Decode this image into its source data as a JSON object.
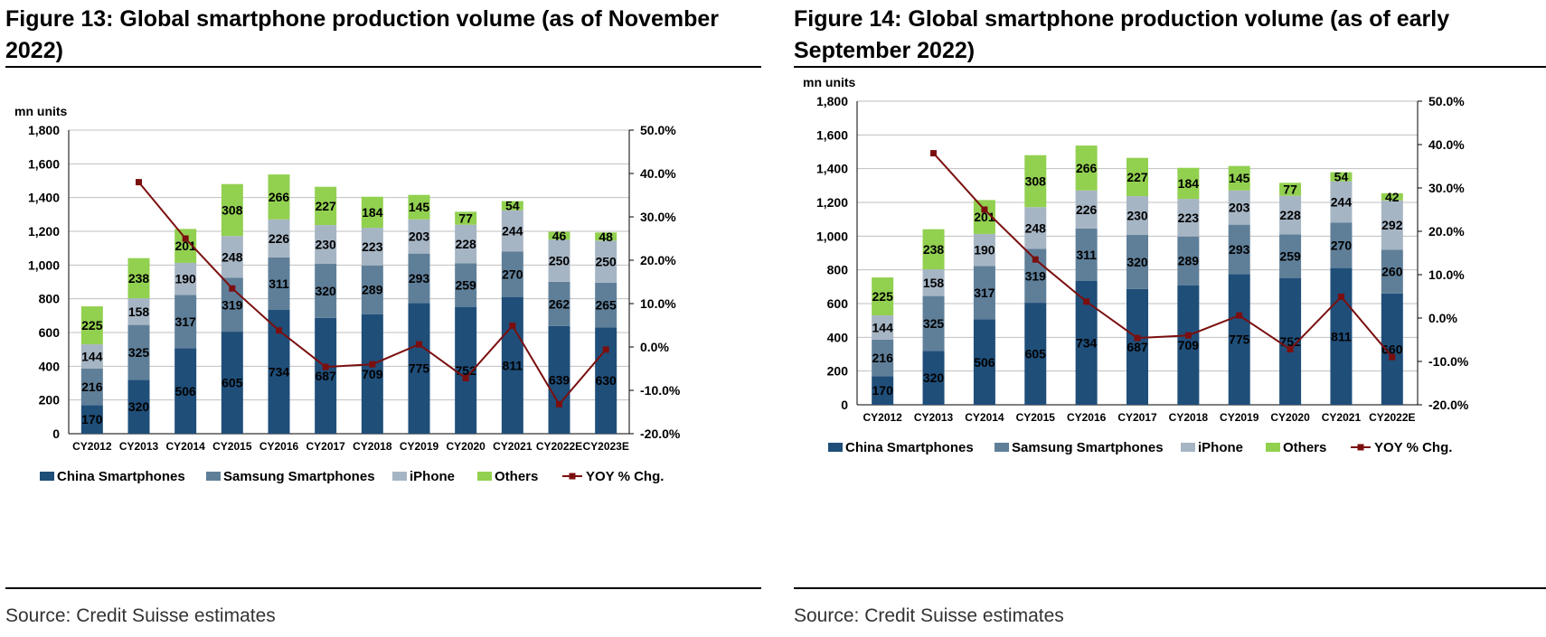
{
  "colors": {
    "china": "#1f4e79",
    "samsung": "#5f7f99",
    "iphone": "#a6b5c4",
    "others": "#92d050",
    "yoy": "#7b0f0f",
    "grid": "#bfbfbf"
  },
  "panels": [
    {
      "title": "Figure 13: Global smartphone production volume (as of November 2022)",
      "source": "Source: Credit Suisse estimates"
    },
    {
      "title": "Figure 14: Global smartphone production volume (as of early September 2022)",
      "source": "Source: Credit Suisse estimates"
    }
  ],
  "chart_data": [
    {
      "type": "bar",
      "stacked": true,
      "title": "",
      "ylabel": "mn units",
      "ylim": [
        0,
        1800
      ],
      "yticks": [
        "0",
        "200",
        "400",
        "600",
        "800",
        "1,000",
        "1,200",
        "1,400",
        "1,600",
        "1,800"
      ],
      "y2lim": [
        -20,
        50
      ],
      "y2ticks": [
        "-20.0%",
        "-10.0%",
        "0.0%",
        "10.0%",
        "20.0%",
        "30.0%",
        "40.0%",
        "50.0%"
      ],
      "categories": [
        "CY2012",
        "CY2013",
        "CY2014",
        "CY2015",
        "CY2016",
        "CY2017",
        "CY2018",
        "CY2019",
        "CY2020",
        "CY2021",
        "CY2022E",
        "CY2023E"
      ],
      "series": [
        {
          "name": "China Smartphones",
          "key": "china",
          "values": [
            170,
            320,
            506,
            605,
            734,
            687,
            709,
            775,
            752,
            811,
            639,
            630
          ]
        },
        {
          "name": "Samsung Smartphones",
          "key": "samsung",
          "values": [
            216,
            325,
            317,
            319,
            311,
            320,
            289,
            293,
            259,
            270,
            262,
            265
          ]
        },
        {
          "name": "iPhone",
          "key": "iphone",
          "values": [
            144,
            158,
            190,
            248,
            226,
            230,
            223,
            203,
            228,
            244,
            250,
            250
          ]
        },
        {
          "name": "Others",
          "key": "others",
          "values": [
            225,
            238,
            201,
            308,
            266,
            227,
            184,
            145,
            77,
            54,
            46,
            48
          ]
        }
      ],
      "line": {
        "name": "YOY % Chg.",
        "axis": "right",
        "values": [
          null,
          38,
          25,
          13.5,
          3.8,
          -4.6,
          -4.0,
          0.6,
          -7.2,
          4.9,
          -13.2,
          -0.6
        ]
      },
      "legend": [
        "China Smartphones",
        "Samsung Smartphones",
        "iPhone",
        "Others",
        "YOY % Chg."
      ],
      "legend_position": "bottom",
      "grid": "horizontal"
    },
    {
      "type": "bar",
      "stacked": true,
      "title": "",
      "ylabel": "mn units",
      "ylim": [
        0,
        1800
      ],
      "yticks": [
        "0",
        "200",
        "400",
        "600",
        "800",
        "1,000",
        "1,200",
        "1,400",
        "1,600",
        "1,800"
      ],
      "y2lim": [
        -20,
        50
      ],
      "y2ticks": [
        "-20.0%",
        "-10.0%",
        "0.0%",
        "10.0%",
        "20.0%",
        "30.0%",
        "40.0%",
        "50.0%"
      ],
      "categories": [
        "CY2012",
        "CY2013",
        "CY2014",
        "CY2015",
        "CY2016",
        "CY2017",
        "CY2018",
        "CY2019",
        "CY2020",
        "CY2021",
        "CY2022E"
      ],
      "series": [
        {
          "name": "China Smartphones",
          "key": "china",
          "values": [
            170,
            320,
            506,
            605,
            734,
            687,
            709,
            775,
            752,
            811,
            660
          ]
        },
        {
          "name": "Samsung Smartphones",
          "key": "samsung",
          "values": [
            216,
            325,
            317,
            319,
            311,
            320,
            289,
            293,
            259,
            270,
            260
          ]
        },
        {
          "name": "iPhone",
          "key": "iphone",
          "values": [
            144,
            158,
            190,
            248,
            226,
            230,
            223,
            203,
            228,
            244,
            292
          ]
        },
        {
          "name": "Others",
          "key": "others",
          "values": [
            225,
            238,
            201,
            308,
            266,
            227,
            184,
            145,
            77,
            54,
            42
          ]
        }
      ],
      "line": {
        "name": "YOY % Chg.",
        "axis": "right",
        "values": [
          null,
          38,
          25,
          13.5,
          3.8,
          -4.6,
          -4.0,
          0.6,
          -7.2,
          4.9,
          -9.0
        ]
      },
      "legend": [
        "China Smartphones",
        "Samsung Smartphones",
        "iPhone",
        "Others",
        "YOY % Chg."
      ],
      "legend_position": "bottom",
      "grid": "horizontal"
    }
  ]
}
